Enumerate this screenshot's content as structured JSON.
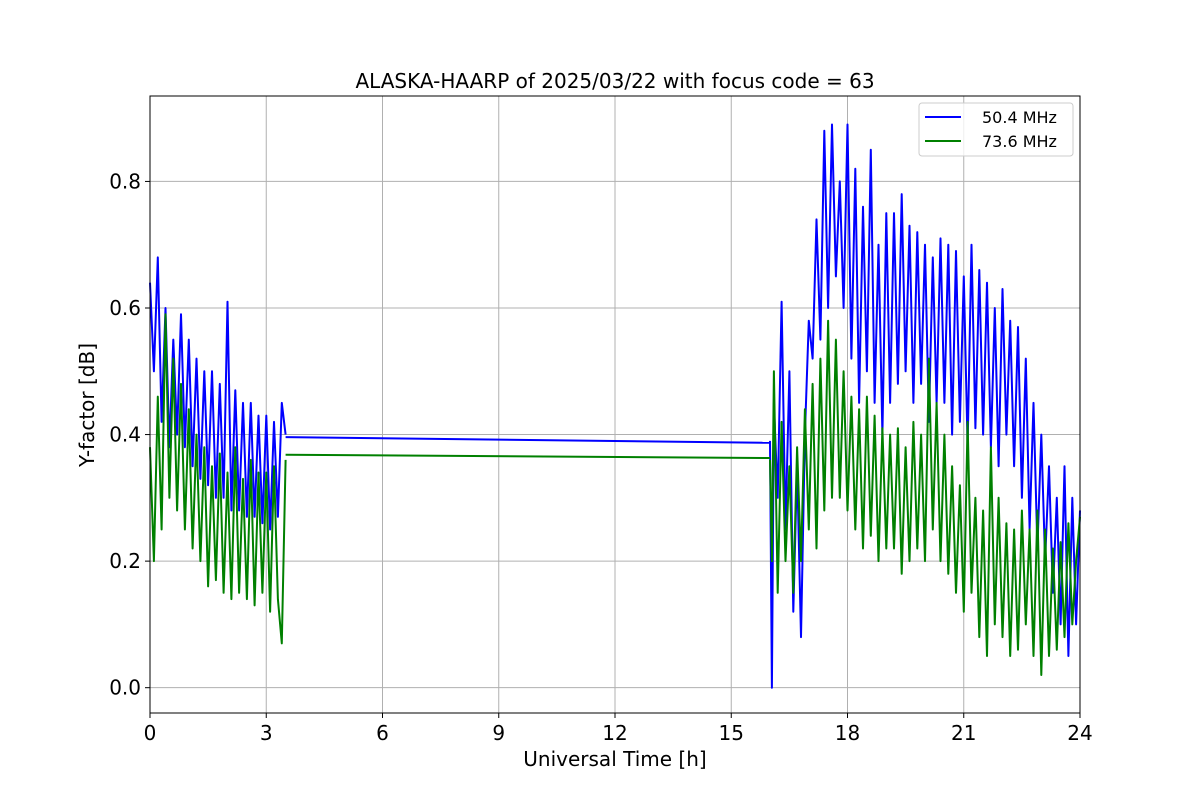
{
  "chart_data": {
    "type": "line",
    "title": "ALASKA-HAARP of 2025/03/22 with focus code = 63",
    "xlabel": "Universal Time [h]",
    "ylabel": "Y-factor [dB]",
    "xlim": [
      0,
      24
    ],
    "ylim": [
      -0.04,
      0.935
    ],
    "xticks": [
      0,
      3,
      6,
      9,
      12,
      15,
      18,
      21,
      24
    ],
    "yticks": [
      0.0,
      0.2,
      0.4,
      0.6,
      0.8
    ],
    "xtick_labels": [
      "0",
      "3",
      "6",
      "9",
      "12",
      "15",
      "18",
      "21",
      "24"
    ],
    "ytick_labels": [
      "0.0",
      "0.2",
      "0.4",
      "0.6",
      "0.8"
    ],
    "grid": true,
    "legend_position": "top-right",
    "series": [
      {
        "name": "50.4 MHz",
        "color": "#0000ff",
        "segments": [
          {
            "x": [
              0.0,
              0.1,
              0.2,
              0.3,
              0.4,
              0.5,
              0.6,
              0.7,
              0.8,
              0.9,
              1.0,
              1.1,
              1.2,
              1.3,
              1.4,
              1.5,
              1.6,
              1.7,
              1.8,
              1.9,
              2.0,
              2.1,
              2.2,
              2.3,
              2.4,
              2.5,
              2.6,
              2.7,
              2.8,
              2.9,
              3.0,
              3.1,
              3.2,
              3.3,
              3.4,
              3.5
            ],
            "y": [
              0.64,
              0.5,
              0.68,
              0.42,
              0.6,
              0.38,
              0.55,
              0.4,
              0.59,
              0.38,
              0.55,
              0.35,
              0.52,
              0.33,
              0.5,
              0.32,
              0.5,
              0.3,
              0.48,
              0.3,
              0.61,
              0.28,
              0.47,
              0.28,
              0.45,
              0.27,
              0.45,
              0.27,
              0.43,
              0.26,
              0.43,
              0.25,
              0.42,
              0.27,
              0.45,
              0.4
            ]
          },
          {
            "x": [
              3.5,
              16.0
            ],
            "y": [
              0.396,
              0.387
            ]
          },
          {
            "x": [
              16.0,
              16.05,
              16.1,
              16.2,
              16.3,
              16.4,
              16.5,
              16.6,
              16.7,
              16.8,
              16.9,
              17.0,
              17.1,
              17.2,
              17.3,
              17.4,
              17.5,
              17.6,
              17.7,
              17.8,
              17.9,
              18.0,
              18.1,
              18.2,
              18.3,
              18.4,
              18.5,
              18.6,
              18.7,
              18.8,
              18.9,
              19.0,
              19.1,
              19.2,
              19.3,
              19.4,
              19.5,
              19.6,
              19.7,
              19.8,
              19.9,
              20.0,
              20.1,
              20.2,
              20.3,
              20.4,
              20.5,
              20.6,
              20.7,
              20.8,
              20.9,
              21.0,
              21.1,
              21.2,
              21.3,
              21.4,
              21.5,
              21.6,
              21.7,
              21.8,
              21.9,
              22.0,
              22.1,
              22.2,
              22.3,
              22.4,
              22.5,
              22.6,
              22.7,
              22.8,
              22.9,
              23.0,
              23.1,
              23.2,
              23.3,
              23.4,
              23.5,
              23.6,
              23.7,
              23.8,
              23.9,
              24.0
            ],
            "y": [
              0.39,
              0.0,
              0.45,
              0.3,
              0.61,
              0.25,
              0.5,
              0.12,
              0.35,
              0.08,
              0.4,
              0.58,
              0.52,
              0.74,
              0.55,
              0.88,
              0.6,
              0.89,
              0.65,
              0.8,
              0.6,
              0.89,
              0.52,
              0.82,
              0.45,
              0.76,
              0.5,
              0.85,
              0.45,
              0.7,
              0.4,
              0.75,
              0.45,
              0.75,
              0.48,
              0.78,
              0.5,
              0.73,
              0.45,
              0.72,
              0.48,
              0.7,
              0.42,
              0.68,
              0.45,
              0.71,
              0.45,
              0.7,
              0.4,
              0.69,
              0.42,
              0.65,
              0.38,
              0.7,
              0.41,
              0.66,
              0.4,
              0.64,
              0.38,
              0.6,
              0.35,
              0.63,
              0.4,
              0.58,
              0.35,
              0.57,
              0.3,
              0.52,
              0.25,
              0.45,
              0.22,
              0.4,
              0.2,
              0.35,
              0.15,
              0.3,
              0.1,
              0.35,
              0.05,
              0.3,
              0.1,
              0.28
            ]
          }
        ]
      },
      {
        "name": "73.6 MHz",
        "color": "#008000",
        "segments": [
          {
            "x": [
              0.0,
              0.1,
              0.2,
              0.3,
              0.4,
              0.5,
              0.6,
              0.7,
              0.8,
              0.9,
              1.0,
              1.1,
              1.2,
              1.3,
              1.4,
              1.5,
              1.6,
              1.7,
              1.8,
              1.9,
              2.0,
              2.1,
              2.2,
              2.3,
              2.4,
              2.5,
              2.6,
              2.7,
              2.8,
              2.9,
              3.0,
              3.1,
              3.2,
              3.3,
              3.4,
              3.5
            ],
            "y": [
              0.38,
              0.2,
              0.46,
              0.25,
              0.59,
              0.3,
              0.52,
              0.28,
              0.48,
              0.25,
              0.44,
              0.22,
              0.4,
              0.2,
              0.38,
              0.16,
              0.35,
              0.17,
              0.37,
              0.15,
              0.34,
              0.14,
              0.38,
              0.15,
              0.33,
              0.14,
              0.36,
              0.13,
              0.34,
              0.15,
              0.34,
              0.12,
              0.35,
              0.14,
              0.07,
              0.36
            ]
          },
          {
            "x": [
              3.5,
              16.0
            ],
            "y": [
              0.368,
              0.363
            ]
          },
          {
            "x": [
              16.0,
              16.05,
              16.1,
              16.2,
              16.3,
              16.4,
              16.5,
              16.6,
              16.7,
              16.8,
              16.9,
              17.0,
              17.1,
              17.2,
              17.3,
              17.4,
              17.5,
              17.6,
              17.7,
              17.8,
              17.9,
              18.0,
              18.1,
              18.2,
              18.3,
              18.4,
              18.5,
              18.6,
              18.7,
              18.8,
              18.9,
              19.0,
              19.1,
              19.2,
              19.3,
              19.4,
              19.5,
              19.6,
              19.7,
              19.8,
              19.9,
              20.0,
              20.1,
              20.2,
              20.3,
              20.4,
              20.5,
              20.6,
              20.7,
              20.8,
              20.9,
              21.0,
              21.1,
              21.2,
              21.3,
              21.4,
              21.5,
              21.6,
              21.7,
              21.8,
              21.9,
              22.0,
              22.1,
              22.2,
              22.3,
              22.4,
              22.5,
              22.6,
              22.7,
              22.8,
              22.9,
              23.0,
              23.1,
              23.2,
              23.3,
              23.4,
              23.5,
              23.6,
              23.7,
              23.8,
              23.9,
              24.0
            ],
            "y": [
              0.36,
              0.2,
              0.5,
              0.15,
              0.42,
              0.2,
              0.35,
              0.15,
              0.38,
              0.2,
              0.44,
              0.25,
              0.48,
              0.22,
              0.52,
              0.28,
              0.58,
              0.3,
              0.55,
              0.3,
              0.5,
              0.28,
              0.46,
              0.25,
              0.44,
              0.22,
              0.46,
              0.24,
              0.43,
              0.2,
              0.41,
              0.22,
              0.4,
              0.22,
              0.41,
              0.18,
              0.38,
              0.2,
              0.42,
              0.22,
              0.4,
              0.2,
              0.52,
              0.25,
              0.45,
              0.2,
              0.4,
              0.18,
              0.35,
              0.15,
              0.32,
              0.12,
              0.42,
              0.15,
              0.3,
              0.08,
              0.28,
              0.05,
              0.38,
              0.1,
              0.3,
              0.08,
              0.26,
              0.05,
              0.25,
              0.06,
              0.28,
              0.1,
              0.25,
              0.05,
              0.28,
              0.02,
              0.25,
              0.05,
              0.22,
              0.06,
              0.23,
              0.08,
              0.26,
              0.1,
              0.2,
              0.27
            ]
          }
        ]
      }
    ]
  }
}
